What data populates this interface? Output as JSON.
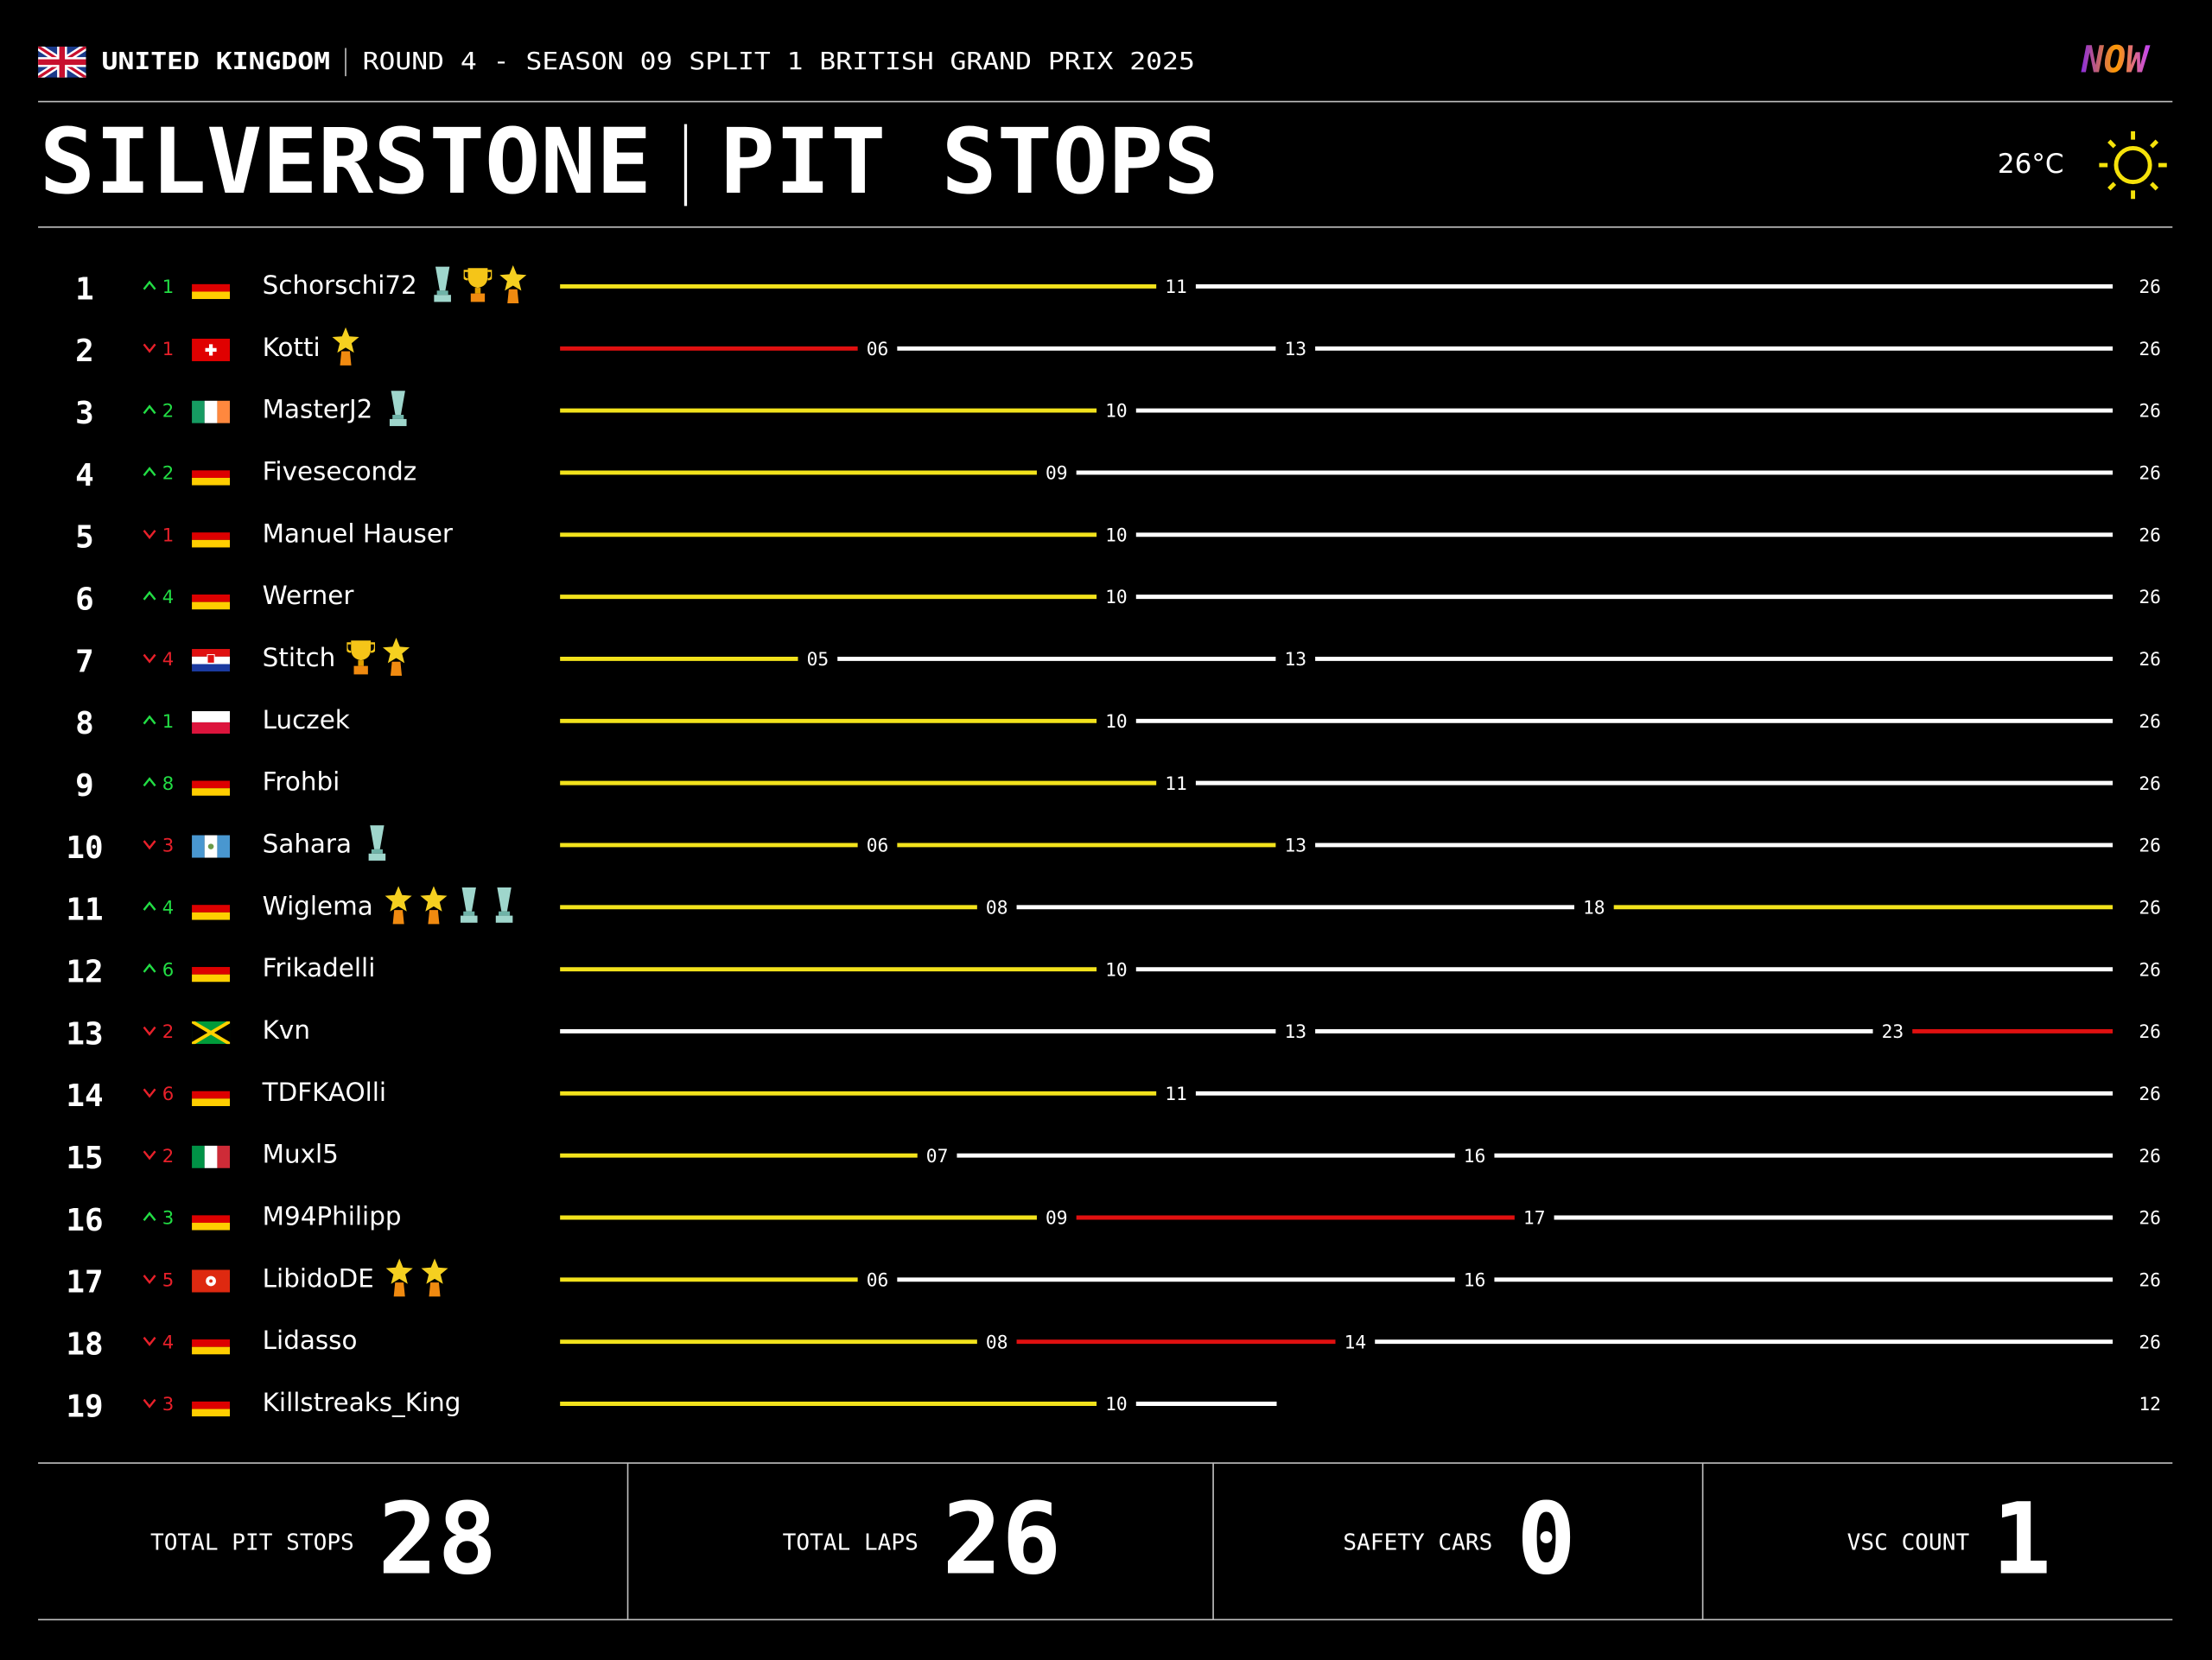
{
  "header": {
    "country": "UNITED KINGDOM",
    "event": "ROUND 4 - SEASON 09 SPLIT 1 BRITISH GRAND PRIX 2025",
    "logo": "NOW",
    "track": "SILVERSTONE",
    "title": "PIT STOPS",
    "temperature": "26°C"
  },
  "chart_data": {
    "type": "stint",
    "xlim": [
      0,
      26
    ],
    "up_color": "#22dd44",
    "down_color": "#e8202a",
    "rows": [
      {
        "position": 1,
        "change": {
          "value": 1,
          "label": "1"
        },
        "name": "Schorschi72",
        "stops": [
          11
        ],
        "laps": 26,
        "stint_colors": [
          "#f2e21c",
          "#ffffff"
        ]
      },
      {
        "position": 2,
        "change": {
          "value": -1,
          "label": "1"
        },
        "name": "Kotti",
        "stops": [
          {
            "value": 6,
            "label": "06"
          },
          13
        ],
        "laps": 26,
        "stint_colors": [
          "#e01010",
          "#ffffff",
          "#ffffff"
        ]
      },
      {
        "position": 3,
        "change": {
          "value": 2,
          "label": "2"
        },
        "name": "MasterJ2",
        "stops": [
          10
        ],
        "laps": 26,
        "stint_colors": [
          "#f2e21c",
          "#ffffff"
        ]
      },
      {
        "position": 4,
        "change": {
          "value": 2,
          "label": "2"
        },
        "name": "Fivesecondz",
        "stops": [
          {
            "value": 9,
            "label": "09"
          }
        ],
        "laps": 26,
        "stint_colors": [
          "#f2e21c",
          "#ffffff"
        ]
      },
      {
        "position": 5,
        "change": {
          "value": -1,
          "label": "1"
        },
        "name": "Manuel Hauser",
        "stops": [
          10
        ],
        "laps": 26,
        "stint_colors": [
          "#f2e21c",
          "#ffffff"
        ]
      },
      {
        "position": 6,
        "change": {
          "value": 4,
          "label": "4"
        },
        "name": "Werner",
        "stops": [
          10
        ],
        "laps": 26,
        "stint_colors": [
          "#f2e21c",
          "#ffffff"
        ]
      },
      {
        "position": 7,
        "change": {
          "value": -4,
          "label": "4"
        },
        "name": "Stitch",
        "stops": [
          {
            "value": 5,
            "label": "05"
          },
          13
        ],
        "laps": 26,
        "stint_colors": [
          "#f2e21c",
          "#ffffff",
          "#ffffff"
        ]
      },
      {
        "position": 8,
        "change": {
          "value": 1,
          "label": "1"
        },
        "name": "Luczek",
        "stops": [
          10
        ],
        "laps": 26,
        "stint_colors": [
          "#f2e21c",
          "#ffffff"
        ]
      },
      {
        "position": 9,
        "change": {
          "value": 8,
          "label": "8"
        },
        "name": "Frohbi",
        "stops": [
          11
        ],
        "laps": 26,
        "stint_colors": [
          "#f2e21c",
          "#ffffff"
        ]
      },
      {
        "position": 10,
        "change": {
          "value": -3,
          "label": "3"
        },
        "name": "Sahara",
        "stops": [
          {
            "value": 6,
            "label": "06"
          },
          13
        ],
        "laps": 26,
        "stint_colors": [
          "#f2e21c",
          "#f2e21c",
          "#ffffff"
        ]
      },
      {
        "position": 11,
        "change": {
          "value": 4,
          "label": "4"
        },
        "name": "Wiglema",
        "stops": [
          {
            "value": 8,
            "label": "08"
          },
          18
        ],
        "laps": 26,
        "stint_colors": [
          "#f2e21c",
          "#ffffff",
          "#f2e21c"
        ]
      },
      {
        "position": 12,
        "change": {
          "value": 6,
          "label": "6"
        },
        "name": "Frikadelli",
        "stops": [
          10
        ],
        "laps": 26,
        "stint_colors": [
          "#f2e21c",
          "#ffffff"
        ]
      },
      {
        "position": 13,
        "change": {
          "value": -2,
          "label": "2"
        },
        "name": "Kvn",
        "stops": [
          13,
          23
        ],
        "laps": 26,
        "stint_colors": [
          "#ffffff",
          "#ffffff",
          "#e01010"
        ]
      },
      {
        "position": 14,
        "change": {
          "value": -6,
          "label": "6"
        },
        "name": "TDFKAOlli",
        "stops": [
          11
        ],
        "laps": 26,
        "stint_colors": [
          "#f2e21c",
          "#ffffff"
        ]
      },
      {
        "position": 15,
        "change": {
          "value": -2,
          "label": "2"
        },
        "name": "Muxl5",
        "stops": [
          {
            "value": 7,
            "label": "07"
          },
          16
        ],
        "laps": 26,
        "stint_colors": [
          "#f2e21c",
          "#ffffff",
          "#ffffff"
        ]
      },
      {
        "position": 16,
        "change": {
          "value": 3,
          "label": "3"
        },
        "name": "M94Philipp",
        "stops": [
          {
            "value": 9,
            "label": "09"
          },
          17
        ],
        "laps": 26,
        "stint_colors": [
          "#f2e21c",
          "#e01010",
          "#ffffff"
        ]
      },
      {
        "position": 17,
        "change": {
          "value": -5,
          "label": "5"
        },
        "name": "LibidoDE",
        "stops": [
          {
            "value": 6,
            "label": "06"
          },
          16
        ],
        "laps": 26,
        "stint_colors": [
          "#f2e21c",
          "#ffffff",
          "#ffffff"
        ]
      },
      {
        "position": 18,
        "change": {
          "value": -4,
          "label": "4"
        },
        "name": "Lidasso",
        "stops": [
          {
            "value": 8,
            "label": "08"
          },
          14
        ],
        "laps": 26,
        "stint_colors": [
          "#f2e21c",
          "#e01010",
          "#ffffff"
        ]
      },
      {
        "position": 19,
        "change": {
          "value": -3,
          "label": "3"
        },
        "name": "Killstreaks_King",
        "stops": [
          10
        ],
        "laps": 12,
        "stint_colors": [
          "#f2e21c",
          "#ffffff"
        ]
      }
    ]
  },
  "stats": [
    {
      "label": "TOTAL PIT STOPS",
      "value": 28
    },
    {
      "label": "TOTAL LAPS",
      "value": 26
    },
    {
      "label": "SAFETY CARS",
      "value": 0
    },
    {
      "label": "VSC COUNT",
      "value": 1
    }
  ]
}
